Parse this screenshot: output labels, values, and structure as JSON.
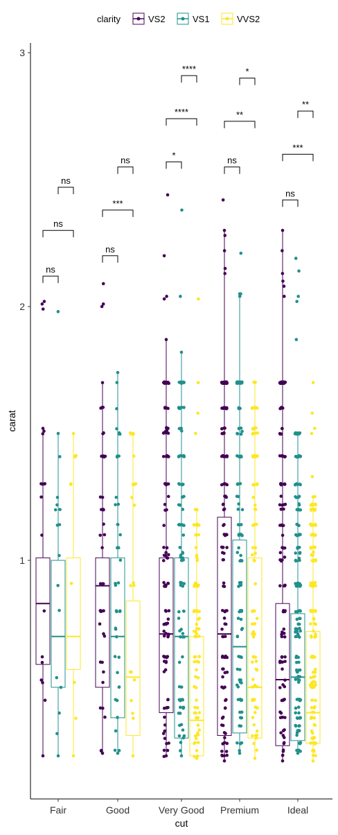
{
  "chart_data": {
    "type": "box",
    "xlabel": "cut",
    "ylabel": "carat",
    "ylim": [
      0.12,
      3.03
    ],
    "yticks": [
      1,
      2,
      3
    ],
    "categories": [
      "Fair",
      "Good",
      "Very Good",
      "Premium",
      "Ideal"
    ],
    "legend": {
      "title": "clarity",
      "position": "top"
    },
    "series": [
      {
        "name": "VS2",
        "color": "#440154",
        "stats": [
          {
            "lower": 0.23,
            "q1": 0.59,
            "median": 0.83,
            "q3": 1.01,
            "upper": 1.52
          },
          {
            "lower": 0.24,
            "q1": 0.5,
            "median": 0.9,
            "q3": 1.01,
            "upper": 1.7
          },
          {
            "lower": 0.23,
            "q1": 0.4,
            "median": 0.71,
            "q3": 1.01,
            "upper": 1.87
          },
          {
            "lower": 0.21,
            "q1": 0.31,
            "median": 0.71,
            "q3": 1.17,
            "upper": 2.3
          },
          {
            "lower": 0.21,
            "q1": 0.27,
            "median": 0.53,
            "q3": 0.83,
            "upper": 2.3
          }
        ],
        "high_points": [
          [
            2.02,
            2.01,
            1.99
          ],
          [
            2.09,
            2.01,
            2.0
          ],
          [
            2.44,
            2.2,
            2.04,
            2.03
          ],
          [
            2.42,
            2.28,
            2.22,
            2.15,
            2.13
          ],
          [
            2.22,
            2.13,
            2.1,
            2.08,
            2.04
          ]
        ]
      },
      {
        "name": "VS1",
        "color": "#21908C",
        "stats": [
          {
            "lower": 0.23,
            "q1": 0.5,
            "median": 0.7,
            "q3": 1.0,
            "upper": 1.5
          },
          {
            "lower": 0.24,
            "q1": 0.38,
            "median": 0.7,
            "q3": 1.01,
            "upper": 1.74
          },
          {
            "lower": 0.23,
            "q1": 0.3,
            "median": 0.7,
            "q3": 1.01,
            "upper": 1.82
          },
          {
            "lower": 0.24,
            "q1": 0.32,
            "median": 0.66,
            "q3": 1.08,
            "upper": 2.05
          },
          {
            "lower": 0.24,
            "q1": 0.29,
            "median": 0.54,
            "q3": 0.79,
            "upper": 1.5
          }
        ],
        "high_points": [
          [
            1.98
          ],
          [],
          [
            2.38,
            2.04
          ],
          [
            2.21,
            2.05,
            2.04
          ],
          [
            2.19,
            2.14,
            2.04,
            2.02,
            1.87
          ]
        ]
      },
      {
        "name": "VVS2",
        "color": "#FDE725",
        "stats": [
          {
            "lower": 0.23,
            "q1": 0.57,
            "median": 0.7,
            "q3": 1.01,
            "upper": 1.5
          },
          {
            "lower": 0.23,
            "q1": 0.31,
            "median": 0.54,
            "q3": 0.84,
            "upper": 1.5
          },
          {
            "lower": 0.22,
            "q1": 0.23,
            "median": 0.37,
            "q3": 0.7,
            "upper": 1.2
          },
          {
            "lower": 0.22,
            "q1": 0.3,
            "median": 0.5,
            "q3": 1.01,
            "upper": 1.7
          },
          {
            "lower": 0.21,
            "q1": 0.28,
            "median": 0.4,
            "q3": 0.72,
            "upper": 1.25
          }
        ],
        "high_points": [
          [],
          [],
          [
            2.03,
            1.7,
            1.58,
            1.5
          ],
          [],
          [
            1.7,
            1.58,
            1.52,
            1.5,
            1.33
          ]
        ]
      }
    ],
    "comparisons": [
      {
        "cut_index": 0,
        "groups": [
          "VS2",
          "VS1"
        ],
        "label": "ns",
        "y": 2.12
      },
      {
        "cut_index": 0,
        "groups": [
          "VS2",
          "VVS2"
        ],
        "label": "ns",
        "y": 2.3
      },
      {
        "cut_index": 0,
        "groups": [
          "VS1",
          "VVS2"
        ],
        "label": "ns",
        "y": 2.47
      },
      {
        "cut_index": 1,
        "groups": [
          "VS2",
          "VS1"
        ],
        "label": "ns",
        "y": 2.2
      },
      {
        "cut_index": 1,
        "groups": [
          "VS2",
          "VVS2"
        ],
        "label": "***",
        "y": 2.38
      },
      {
        "cut_index": 1,
        "groups": [
          "VS1",
          "VVS2"
        ],
        "label": "ns",
        "y": 2.55
      },
      {
        "cut_index": 2,
        "groups": [
          "VS2",
          "VS1"
        ],
        "label": "*",
        "y": 2.57
      },
      {
        "cut_index": 2,
        "groups": [
          "VS2",
          "VVS2"
        ],
        "label": "****",
        "y": 2.74
      },
      {
        "cut_index": 2,
        "groups": [
          "VS1",
          "VVS2"
        ],
        "label": "****",
        "y": 2.91
      },
      {
        "cut_index": 3,
        "groups": [
          "VS2",
          "VS1"
        ],
        "label": "ns",
        "y": 2.55
      },
      {
        "cut_index": 3,
        "groups": [
          "VS2",
          "VVS2"
        ],
        "label": "**",
        "y": 2.73
      },
      {
        "cut_index": 3,
        "groups": [
          "VS1",
          "VVS2"
        ],
        "label": "*",
        "y": 2.9
      },
      {
        "cut_index": 4,
        "groups": [
          "VS2",
          "VS1"
        ],
        "label": "ns",
        "y": 2.42
      },
      {
        "cut_index": 4,
        "groups": [
          "VS2",
          "VVS2"
        ],
        "label": "***",
        "y": 2.6
      },
      {
        "cut_index": 4,
        "groups": [
          "VS1",
          "VVS2"
        ],
        "label": "**",
        "y": 2.77
      }
    ]
  }
}
